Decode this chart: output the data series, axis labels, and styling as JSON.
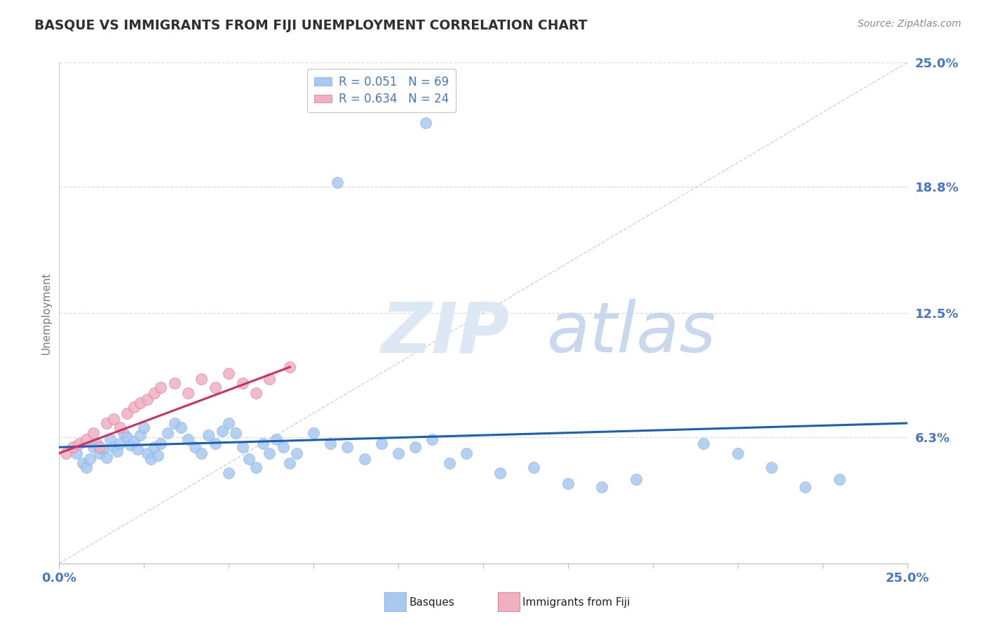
{
  "title": "BASQUE VS IMMIGRANTS FROM FIJI UNEMPLOYMENT CORRELATION CHART",
  "source_text": "Source: ZipAtlas.com",
  "ylabel": "Unemployment",
  "xmin": 0.0,
  "xmax": 0.25,
  "ymin": 0.0,
  "ymax": 0.25,
  "ytick_labels": [
    "6.3%",
    "12.5%",
    "18.8%",
    "25.0%"
  ],
  "ytick_values": [
    0.063,
    0.125,
    0.188,
    0.25
  ],
  "basque_color": "#a8c8f0",
  "basque_edge_color": "#7ab0e0",
  "fiji_color": "#f0b0c0",
  "fiji_edge_color": "#e07090",
  "trendline_blue_color": "#1a5fb4",
  "trendline_pink_color": "#d03060",
  "diagonal_color": "#c0c8d8",
  "watermark_zip_color": "#dde8f5",
  "watermark_atlas_color": "#c8d8ee",
  "background_color": "#ffffff",
  "title_color": "#303030",
  "axis_label_color": "#4477cc",
  "grid_color": "#d5dce8",
  "legend_text_color": "#000000",
  "legend_r_color": "#4477cc",
  "source_color": "#888888",
  "basque_points_x": [
    0.005,
    0.007,
    0.008,
    0.009,
    0.01,
    0.011,
    0.012,
    0.013,
    0.014,
    0.015,
    0.016,
    0.017,
    0.018,
    0.019,
    0.02,
    0.021,
    0.022,
    0.023,
    0.024,
    0.025,
    0.026,
    0.027,
    0.028,
    0.029,
    0.03,
    0.032,
    0.034,
    0.036,
    0.038,
    0.04,
    0.042,
    0.044,
    0.046,
    0.048,
    0.05,
    0.052,
    0.054,
    0.056,
    0.058,
    0.06,
    0.062,
    0.064,
    0.066,
    0.068,
    0.07,
    0.075,
    0.08,
    0.085,
    0.09,
    0.095,
    0.1,
    0.105,
    0.11,
    0.115,
    0.12,
    0.13,
    0.14,
    0.15,
    0.16,
    0.17,
    0.078,
    0.108,
    0.082,
    0.19,
    0.2,
    0.21,
    0.22,
    0.23,
    0.05
  ],
  "basque_points_y": [
    0.055,
    0.05,
    0.048,
    0.052,
    0.058,
    0.06,
    0.055,
    0.057,
    0.053,
    0.062,
    0.058,
    0.056,
    0.06,
    0.065,
    0.063,
    0.059,
    0.061,
    0.057,
    0.064,
    0.068,
    0.055,
    0.052,
    0.058,
    0.054,
    0.06,
    0.065,
    0.07,
    0.068,
    0.062,
    0.058,
    0.055,
    0.064,
    0.06,
    0.066,
    0.07,
    0.065,
    0.058,
    0.052,
    0.048,
    0.06,
    0.055,
    0.062,
    0.058,
    0.05,
    0.055,
    0.065,
    0.06,
    0.058,
    0.052,
    0.06,
    0.055,
    0.058,
    0.062,
    0.05,
    0.055,
    0.045,
    0.048,
    0.04,
    0.038,
    0.042,
    0.23,
    0.22,
    0.19,
    0.06,
    0.055,
    0.048,
    0.038,
    0.042,
    0.045
  ],
  "fiji_points_x": [
    0.002,
    0.004,
    0.006,
    0.008,
    0.01,
    0.012,
    0.014,
    0.016,
    0.018,
    0.02,
    0.022,
    0.024,
    0.026,
    0.028,
    0.03,
    0.034,
    0.038,
    0.042,
    0.046,
    0.05,
    0.054,
    0.058,
    0.062,
    0.068
  ],
  "fiji_points_y": [
    0.055,
    0.058,
    0.06,
    0.062,
    0.065,
    0.058,
    0.07,
    0.072,
    0.068,
    0.075,
    0.078,
    0.08,
    0.082,
    0.085,
    0.088,
    0.09,
    0.085,
    0.092,
    0.088,
    0.095,
    0.09,
    0.085,
    0.092,
    0.098
  ],
  "blue_trend_x0": 0.0,
  "blue_trend_x1": 0.25,
  "blue_trend_y0": 0.058,
  "blue_trend_y1": 0.07,
  "pink_trend_x0": 0.0,
  "pink_trend_x1": 0.068,
  "pink_trend_y0": 0.055,
  "pink_trend_y1": 0.098
}
